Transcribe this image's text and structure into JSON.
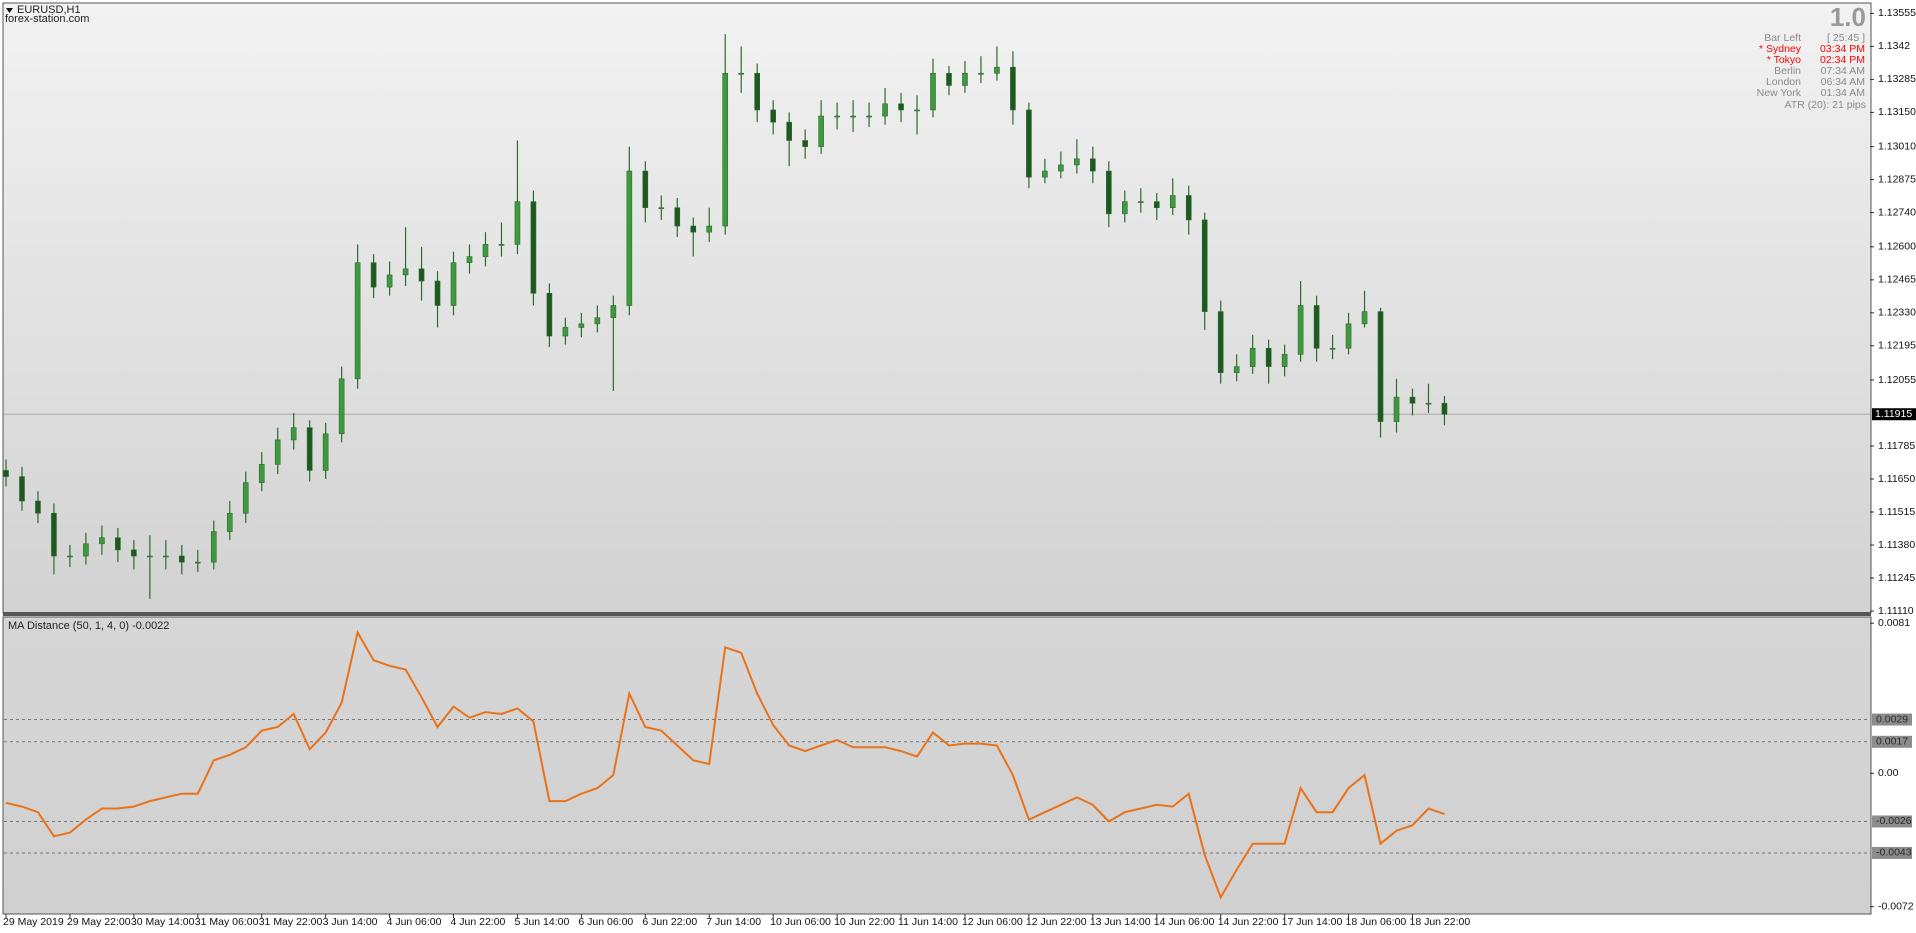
{
  "header": {
    "symbol": "EURUSD,H1",
    "site": "forex-station.com"
  },
  "info_panel": {
    "version": "1.0",
    "rows": [
      {
        "label": "Bar Left",
        "value": "[ 25:45 ]",
        "color": "#8a8a8a"
      },
      {
        "label": "* Sydney",
        "value": "03:34 PM",
        "color": "#ff0000"
      },
      {
        "label": "* Tokyo",
        "value": "02:34 PM",
        "color": "#ff0000"
      },
      {
        "label": "Berlin",
        "value": "07:34 AM",
        "color": "#8a8a8a"
      },
      {
        "label": "London",
        "value": "06:34 AM",
        "color": "#8a8a8a"
      },
      {
        "label": "New York",
        "value": "01:34 AM",
        "color": "#8a8a8a"
      }
    ],
    "atr": "ATR (20): 21 pips"
  },
  "chart_data": [
    {
      "type": "candlestick",
      "x": [
        0,
        4,
        8,
        12,
        16,
        20,
        24,
        28,
        32,
        36,
        40,
        44,
        48,
        52,
        56,
        60,
        64,
        68,
        72,
        76,
        80,
        84,
        88,
        92,
        96,
        100,
        104,
        108,
        112,
        116,
        120,
        124,
        128,
        132,
        136,
        140,
        144,
        148,
        152,
        156,
        160,
        164,
        168,
        172,
        176,
        180,
        184,
        188,
        192,
        196,
        200,
        204,
        208,
        212,
        216,
        220,
        224,
        228,
        232,
        236,
        240,
        244,
        248,
        252,
        256,
        260,
        264,
        268,
        272,
        276,
        280,
        284,
        288,
        292,
        296,
        300,
        304,
        308,
        312,
        316,
        320,
        324,
        328,
        332,
        336,
        340,
        344,
        348,
        352,
        356,
        360
      ],
      "open": [
        1.11685,
        1.1166,
        1.1156,
        1.1151,
        1.11335,
        1.11335,
        1.11385,
        1.1141,
        1.1136,
        1.11335,
        1.11335,
        1.11335,
        1.1131,
        1.1131,
        1.11435,
        1.1151,
        1.11635,
        1.1171,
        1.1181,
        1.1186,
        1.11685,
        1.11835,
        1.1206,
        1.12535,
        1.12435,
        1.12485,
        1.1251,
        1.1246,
        1.1236,
        1.12535,
        1.1256,
        1.1261,
        1.1261,
        1.12785,
        1.1241,
        1.12235,
        1.1227,
        1.12285,
        1.1231,
        1.1236,
        1.1291,
        1.1276,
        1.1276,
        1.12685,
        1.1266,
        1.12685,
        1.1331,
        1.1331,
        1.1316,
        1.1311,
        1.13035,
        1.1301,
        1.13135,
        1.13135,
        1.13135,
        1.13135,
        1.13185,
        1.1316,
        1.1316,
        1.1331,
        1.1326,
        1.1331,
        1.1331,
        1.13335,
        1.1316,
        1.12885,
        1.1291,
        1.12935,
        1.1296,
        1.1291,
        1.12735,
        1.12785,
        1.12785,
        1.1276,
        1.1281,
        1.1271,
        1.12335,
        1.12085,
        1.1211,
        1.12185,
        1.1211,
        1.1216,
        1.1236,
        1.12185,
        1.12185,
        1.12285,
        1.12335,
        1.11885,
        1.11985,
        1.1196,
        1.1196
      ],
      "high": [
        1.1173,
        1.117,
        1.116,
        1.1155,
        1.1138,
        1.1143,
        1.1146,
        1.1145,
        1.114,
        1.1142,
        1.114,
        1.1138,
        1.1136,
        1.1148,
        1.1156,
        1.1168,
        1.1176,
        1.1186,
        1.1192,
        1.1189,
        1.1188,
        1.1211,
        1.1261,
        1.1257,
        1.1254,
        1.1268,
        1.126,
        1.125,
        1.1258,
        1.1261,
        1.1266,
        1.127,
        1.13035,
        1.1283,
        1.1245,
        1.1231,
        1.1233,
        1.1236,
        1.124,
        1.1301,
        1.1295,
        1.1281,
        1.128,
        1.1272,
        1.1276,
        1.1347,
        1.1342,
        1.1335,
        1.132,
        1.1315,
        1.1308,
        1.132,
        1.1319,
        1.132,
        1.1319,
        1.1325,
        1.1323,
        1.1322,
        1.1337,
        1.1334,
        1.1336,
        1.1338,
        1.1342,
        1.134,
        1.1319,
        1.1296,
        1.1299,
        1.1304,
        1.1301,
        1.1295,
        1.1283,
        1.1284,
        1.1282,
        1.1288,
        1.1285,
        1.1274,
        1.1238,
        1.1216,
        1.1224,
        1.1222,
        1.122,
        1.1246,
        1.124,
        1.1224,
        1.1233,
        1.1242,
        1.1235,
        1.1206,
        1.1202,
        1.1204,
        1.1199
      ],
      "low": [
        1.1162,
        1.1152,
        1.1147,
        1.1126,
        1.1129,
        1.113,
        1.1134,
        1.1131,
        1.1128,
        1.1116,
        1.1128,
        1.1126,
        1.1127,
        1.1128,
        1.114,
        1.1147,
        1.116,
        1.1167,
        1.1177,
        1.1164,
        1.1165,
        1.118,
        1.1202,
        1.1239,
        1.124,
        1.1244,
        1.1238,
        1.1227,
        1.1232,
        1.1249,
        1.1252,
        1.1256,
        1.1257,
        1.1236,
        1.1219,
        1.122,
        1.1223,
        1.1225,
        1.1201,
        1.1232,
        1.127,
        1.1271,
        1.1264,
        1.1256,
        1.1262,
        1.1265,
        1.1323,
        1.1311,
        1.1306,
        1.1293,
        1.1296,
        1.1298,
        1.1308,
        1.1307,
        1.1309,
        1.131,
        1.1311,
        1.1306,
        1.1313,
        1.1322,
        1.1323,
        1.1327,
        1.1328,
        1.131,
        1.1284,
        1.1286,
        1.1288,
        1.129,
        1.1286,
        1.1268,
        1.127,
        1.1274,
        1.1271,
        1.1273,
        1.1265,
        1.1226,
        1.1204,
        1.1205,
        1.1208,
        1.1204,
        1.1207,
        1.1213,
        1.1213,
        1.1214,
        1.1216,
        1.1227,
        1.1182,
        1.1184,
        1.1191,
        1.1192,
        1.1187
      ],
      "close": [
        1.1166,
        1.1156,
        1.1151,
        1.11335,
        1.11335,
        1.11385,
        1.1141,
        1.1136,
        1.11335,
        1.11335,
        1.11335,
        1.1131,
        1.1131,
        1.11435,
        1.1151,
        1.11635,
        1.1171,
        1.1181,
        1.1186,
        1.11685,
        1.11835,
        1.1206,
        1.12535,
        1.12435,
        1.12485,
        1.1251,
        1.1246,
        1.1236,
        1.12535,
        1.1256,
        1.1261,
        1.1261,
        1.12785,
        1.1241,
        1.12235,
        1.1227,
        1.12285,
        1.1231,
        1.1236,
        1.1291,
        1.1276,
        1.1276,
        1.12685,
        1.1266,
        1.12685,
        1.1331,
        1.1331,
        1.1316,
        1.1311,
        1.13035,
        1.1301,
        1.13135,
        1.13135,
        1.13135,
        1.13135,
        1.13185,
        1.1316,
        1.1316,
        1.1331,
        1.1326,
        1.1331,
        1.1331,
        1.13335,
        1.1316,
        1.12885,
        1.1291,
        1.12935,
        1.1296,
        1.1291,
        1.12735,
        1.12785,
        1.12785,
        1.1276,
        1.1281,
        1.1271,
        1.12335,
        1.12085,
        1.1211,
        1.12185,
        1.1211,
        1.1216,
        1.1236,
        1.12185,
        1.12185,
        1.12285,
        1.12335,
        1.11885,
        1.11985,
        1.1196,
        1.1196,
        1.11915
      ],
      "up_color": "#3f9a3f",
      "down_color": "#1e5a1e",
      "wick_color": "#2c6b2c",
      "xlim": [
        -0.5,
        466.5
      ],
      "xticks": [
        {
          "value": 0,
          "label": "29 May 2019"
        },
        {
          "value": 16,
          "label": "29 May 22:00"
        },
        {
          "value": 32,
          "label": "30 May 14:00"
        },
        {
          "value": 48,
          "label": "31 May 06:00"
        },
        {
          "value": 64,
          "label": "31 May 22:00"
        },
        {
          "value": 80,
          "label": "3 Jun 14:00"
        },
        {
          "value": 96,
          "label": "4 Jun 06:00"
        },
        {
          "value": 112,
          "label": "4 Jun 22:00"
        },
        {
          "value": 128,
          "label": "5 Jun 14:00"
        },
        {
          "value": 144,
          "label": "6 Jun 06:00"
        },
        {
          "value": 160,
          "label": "6 Jun 22:00"
        },
        {
          "value": 176,
          "label": "7 Jun 14:00"
        },
        {
          "value": 192,
          "label": "10 Jun 06:00"
        },
        {
          "value": 208,
          "label": "10 Jun 22:00"
        },
        {
          "value": 224,
          "label": "11 Jun 14:00"
        },
        {
          "value": 240,
          "label": "12 Jun 06:00"
        },
        {
          "value": 256,
          "label": "12 Jun 22:00"
        },
        {
          "value": 272,
          "label": "13 Jun 14:00"
        },
        {
          "value": 288,
          "label": "14 Jun 06:00"
        },
        {
          "value": 304,
          "label": "14 Jun 22:00"
        },
        {
          "value": 320,
          "label": "17 Jun 14:00"
        },
        {
          "value": 336,
          "label": "18 Jun 06:00"
        },
        {
          "value": 352,
          "label": "18 Jun 22:00"
        }
      ],
      "ylim": [
        1.1111,
        1.13555
      ],
      "yticks": [
        1.13555,
        1.1342,
        1.13285,
        {
          "value": 1.1315,
          "label": "1.13150"
        },
        {
          "value": 1.1301,
          "label": "1.13010"
        },
        1.12875,
        {
          "value": 1.1274,
          "label": "1.12740"
        },
        {
          "value": 1.126,
          "label": "1.12600"
        },
        1.12465,
        {
          "value": 1.1233,
          "label": "1.12330"
        },
        1.12195,
        1.12055,
        1.11785,
        {
          "value": 1.1165,
          "label": "1.11650"
        },
        1.11515,
        {
          "value": 1.1138,
          "label": "1.11380"
        },
        1.11245,
        {
          "value": 1.1111,
          "label": "1.11110"
        }
      ],
      "current_price": 1.11915
    },
    {
      "type": "line",
      "title": "MA Distance (50, 1, 4, 0) -0.0022",
      "x": [
        0,
        4,
        8,
        12,
        16,
        20,
        24,
        28,
        32,
        36,
        40,
        44,
        48,
        52,
        56,
        60,
        64,
        68,
        72,
        76,
        80,
        84,
        88,
        92,
        96,
        100,
        104,
        108,
        112,
        116,
        120,
        124,
        128,
        132,
        136,
        140,
        144,
        148,
        152,
        156,
        160,
        164,
        168,
        172,
        176,
        180,
        184,
        188,
        192,
        196,
        200,
        204,
        208,
        212,
        216,
        220,
        224,
        228,
        232,
        236,
        240,
        244,
        248,
        252,
        256,
        260,
        264,
        268,
        272,
        276,
        280,
        284,
        288,
        292,
        296,
        300,
        304,
        308,
        312,
        316,
        320,
        324,
        328,
        332,
        336,
        340,
        344,
        348,
        352,
        356,
        360
      ],
      "values": [
        -0.0016,
        -0.0018,
        -0.0021,
        -0.0034,
        -0.0032,
        -0.0025,
        -0.0019,
        -0.0019,
        -0.0018,
        -0.0015,
        -0.0013,
        -0.0011,
        -0.0011,
        0.0007,
        0.001,
        0.0014,
        0.0023,
        0.0025,
        0.0032,
        0.0013,
        0.0022,
        0.0038,
        0.0076,
        0.0061,
        0.0058,
        0.0056,
        0.0041,
        0.0025,
        0.0036,
        0.003,
        0.0033,
        0.0032,
        0.0035,
        0.0028,
        -0.0015,
        -0.0015,
        -0.0011,
        -0.0008,
        -0.0001,
        0.0043,
        0.0025,
        0.0023,
        0.0015,
        0.0007,
        0.0005,
        0.0068,
        0.0065,
        0.0043,
        0.0026,
        0.0015,
        0.0012,
        0.0015,
        0.0018,
        0.0014,
        0.0014,
        0.0014,
        0.0012,
        0.0009,
        0.0022,
        0.0015,
        0.0016,
        0.0016,
        0.0015,
        -0.0001,
        -0.0025,
        -0.0021,
        -0.0017,
        -0.0013,
        -0.0017,
        -0.0026,
        -0.0021,
        -0.0019,
        -0.0017,
        -0.0018,
        -0.0011,
        -0.0044,
        -0.0067,
        -0.0052,
        -0.0038,
        -0.0038,
        -0.0038,
        -0.0008,
        -0.0021,
        -0.0021,
        -0.0008,
        -0.0001,
        -0.0038,
        -0.0031,
        -0.0028,
        -0.0019,
        -0.0022
      ],
      "color": "#e8731a",
      "xlim": [
        -0.5,
        466.5
      ],
      "ylim": [
        -0.0072,
        0.0081
      ],
      "yticks": [
        0.0081,
        {
          "value": 0,
          "label": "0.00"
        },
        -0.0072
      ],
      "levels": [
        0.0029,
        0.0017,
        -0.0026,
        -0.0043
      ]
    }
  ]
}
